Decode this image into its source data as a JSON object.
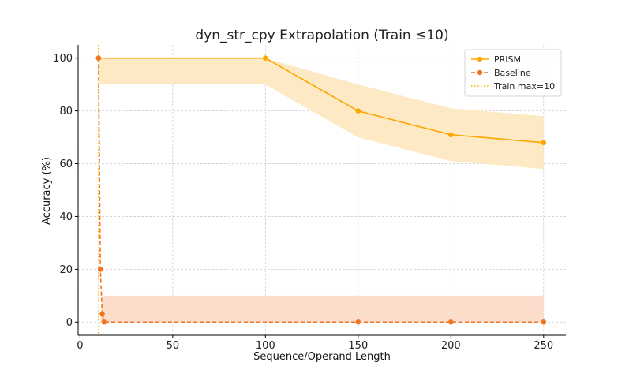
{
  "chart_data": {
    "type": "line",
    "title": "dyn_str_cpy Extrapolation (Train ≤10)",
    "xlabel": "Sequence/Operand Length",
    "ylabel": "Accuracy (%)",
    "xlim": [
      -1,
      262
    ],
    "ylim": [
      -5,
      105
    ],
    "x_ticks": [
      0,
      50,
      100,
      150,
      200,
      250
    ],
    "y_ticks": [
      0,
      20,
      40,
      60,
      80,
      100
    ],
    "grid": true,
    "legend_position": "top-right",
    "series": [
      {
        "name": "PRISM",
        "color": "#ffa500",
        "style": "solid",
        "marker": "circle",
        "x": [
          10,
          100,
          150,
          200,
          250
        ],
        "y": [
          100,
          100,
          80,
          71,
          68
        ],
        "band_lower": [
          90,
          90,
          70,
          61,
          58
        ],
        "band_upper": [
          100,
          100,
          90,
          81,
          78
        ],
        "band_color": "#fde9c3"
      },
      {
        "name": "Baseline",
        "color": "#f07422",
        "style": "dashed",
        "marker": "circle",
        "x": [
          10,
          11,
          12,
          13,
          150,
          200,
          250
        ],
        "y": [
          100,
          20,
          3,
          0,
          0,
          0,
          0
        ],
        "band_lower": [
          0,
          0,
          0,
          0,
          0,
          0,
          0
        ],
        "band_upper": [
          0,
          0,
          10,
          10,
          10,
          10,
          10
        ],
        "band_color": "#fcdccb"
      }
    ],
    "reference_lines": [
      {
        "name": "Train max=10",
        "orientation": "vertical",
        "x": 10,
        "color": "#ffb000",
        "style": "dotted"
      }
    ]
  }
}
